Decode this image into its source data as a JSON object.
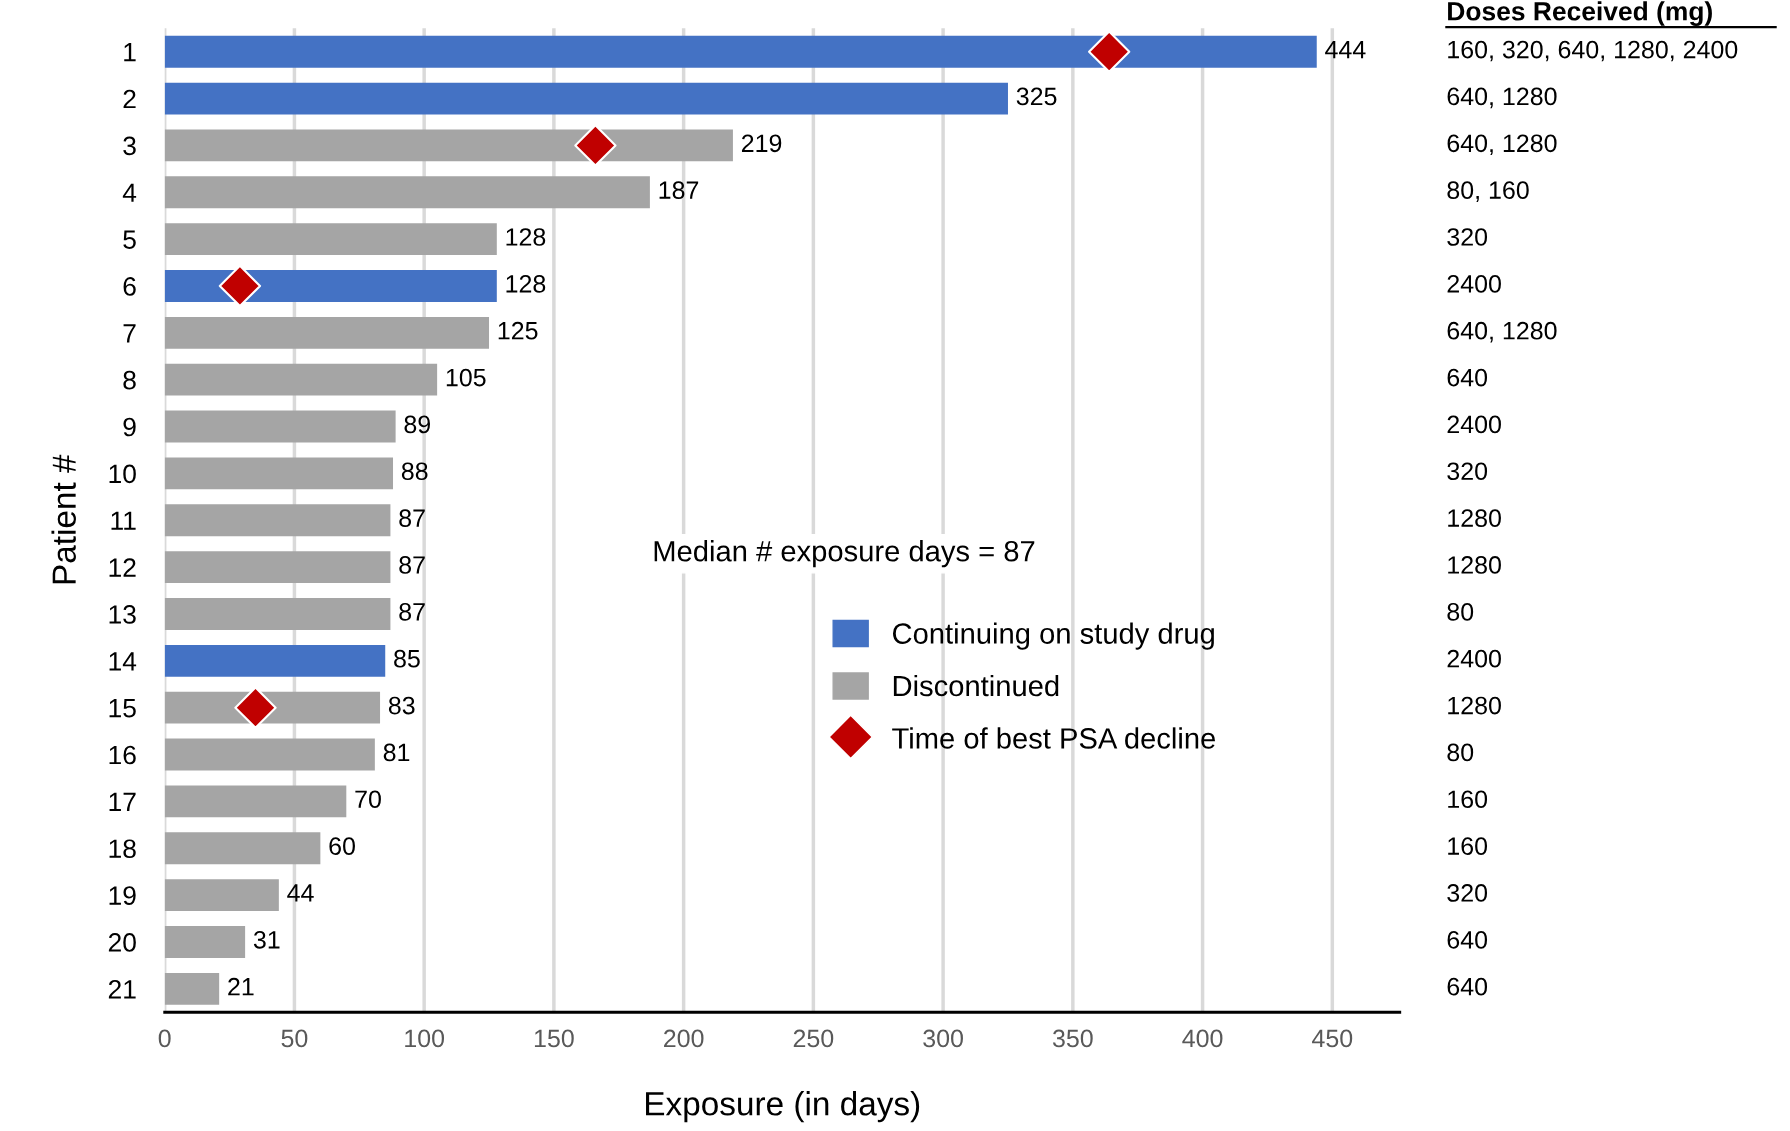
{
  "chart_data": {
    "type": "bar",
    "orientation": "horizontal",
    "categories": [
      "1",
      "2",
      "3",
      "4",
      "5",
      "6",
      "7",
      "8",
      "9",
      "10",
      "11",
      "12",
      "13",
      "14",
      "15",
      "16",
      "17",
      "18",
      "19",
      "20",
      "21"
    ],
    "series": [
      {
        "name": "Continuing on study drug",
        "color": "#4472c4",
        "values": [
          444,
          325,
          null,
          null,
          null,
          128,
          null,
          null,
          null,
          null,
          null,
          null,
          null,
          85,
          null,
          null,
          null,
          null,
          null,
          null,
          null
        ],
        "value_labels": [
          "444",
          "325",
          null,
          null,
          null,
          "128",
          null,
          null,
          null,
          null,
          null,
          null,
          null,
          "85",
          null,
          null,
          null,
          null,
          null,
          null,
          null
        ]
      },
      {
        "name": "Discontinued",
        "color": "#a5a5a5",
        "values": [
          null,
          null,
          219,
          187,
          128,
          null,
          125,
          105,
          89,
          88,
          87,
          87,
          87,
          null,
          83,
          81,
          70,
          60,
          44,
          31,
          21
        ],
        "value_labels": [
          null,
          null,
          "219",
          "187",
          "128",
          null,
          "125",
          "105",
          "89",
          "88",
          "87",
          "87",
          "87",
          null,
          "83",
          "81",
          "70",
          "60",
          "44",
          "31",
          "21"
        ]
      },
      {
        "name": "Time of best PSA decline",
        "type": "scatter",
        "marker": "diamond",
        "color": "#c00000",
        "x": [
          "1",
          "3",
          "6",
          "15"
        ],
        "values": [
          364,
          166,
          29,
          35
        ]
      }
    ],
    "xlabel": "Exposure (in days)",
    "ylabel": "Patient #",
    "xlim": [
      0,
      476
    ],
    "xticks": [
      0,
      50,
      100,
      150,
      200,
      250,
      300,
      350,
      400,
      450
    ],
    "grid": "x",
    "legend": "right",
    "annotations": [
      "Median # exposure days = 87",
      "Doses Received (mg)",
      "160, 320, 640, 1280, 2400",
      "640, 1280",
      "640, 1280",
      "80, 160",
      "320",
      "2400",
      "640, 1280",
      "640",
      "2400",
      "320",
      "1280",
      "1280",
      "80",
      "2400",
      "1280",
      "80",
      "160",
      "160",
      "320",
      "640",
      "640"
    ]
  }
}
